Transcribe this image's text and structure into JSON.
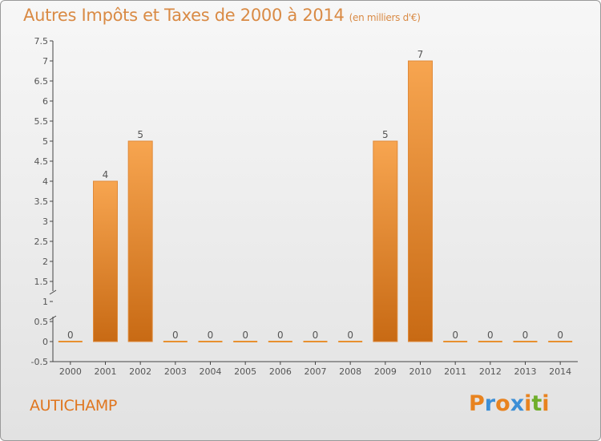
{
  "header": {
    "title": "Autres Impôts et Taxes de 2000 à 2014",
    "unit": "(en milliers d'€)"
  },
  "commune": "AUTICHAMP",
  "logo": {
    "letters": [
      "P",
      "r",
      "o",
      "x",
      "i",
      "t",
      "i"
    ],
    "colors": [
      "#e8831f",
      "#3c8fd6",
      "#e8831f",
      "#3c8fd6",
      "#e8831f",
      "#6fae2a",
      "#e8831f"
    ]
  },
  "colors": {
    "bar_top": "#f7a550",
    "bar_bottom": "#c86a14",
    "axis": "#444444"
  },
  "chart_data": {
    "type": "bar",
    "categories": [
      "2000",
      "2001",
      "2002",
      "2003",
      "2004",
      "2005",
      "2006",
      "2007",
      "2008",
      "2009",
      "2010",
      "2011",
      "2012",
      "2013",
      "2014"
    ],
    "values": [
      0,
      4,
      5,
      0,
      0,
      0,
      0,
      0,
      0,
      5,
      7,
      0,
      0,
      0,
      0
    ],
    "value_labels": [
      "0",
      "4",
      "5",
      "0",
      "0",
      "0",
      "0",
      "0",
      "0",
      "5",
      "7",
      "0",
      "0",
      "0",
      "0"
    ],
    "ylim": [
      -0.5,
      7.5
    ],
    "yticks": [
      "7.5",
      "7",
      "6.5",
      "6",
      "5.5",
      "5",
      "4.5",
      "4",
      "3.5",
      "3",
      "2.5",
      "2",
      "1.5",
      "1",
      "0.5",
      "0",
      "-0.5"
    ],
    "ytick_values": [
      7.5,
      7,
      6.5,
      6,
      5.5,
      5,
      4.5,
      4,
      3.5,
      3,
      2.5,
      2,
      1.5,
      1,
      0.5,
      0,
      -0.5
    ],
    "grid": false,
    "axis_break": "between 0.5 and 1.5",
    "title": "Autres Impôts et Taxes de 2000 à 2014"
  }
}
